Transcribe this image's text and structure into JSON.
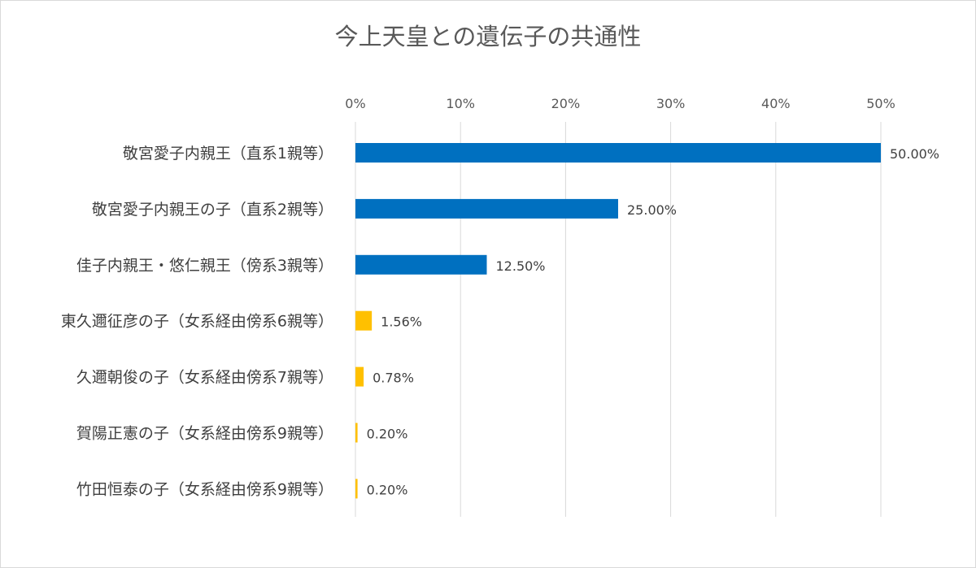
{
  "chart_data": {
    "type": "bar",
    "orientation": "horizontal",
    "title": "今上天皇との遺伝子の共通性",
    "xlabel": "",
    "ylabel": "",
    "xlim": [
      0,
      50
    ],
    "x_ticks": [
      "0%",
      "10%",
      "20%",
      "30%",
      "40%",
      "50%"
    ],
    "grid": true,
    "categories": [
      "敬宮愛子内親王（直系1親等）",
      "敬宮愛子内親王の子（直系2親等）",
      "佳子内親王・悠仁親王（傍系3親等）",
      "東久邇征彦の子（女系経由傍系6親等）",
      "久邇朝俊の子（女系経由傍系7親等）",
      "賀陽正憲の子（女系経由傍系9親等）",
      "竹田恒泰の子（女系経由傍系9親等）"
    ],
    "values": [
      50.0,
      25.0,
      12.5,
      1.56,
      0.78,
      0.2,
      0.2
    ],
    "data_labels": [
      "50.00%",
      "25.00%",
      "12.50%",
      "1.56%",
      "0.78%",
      "0.20%",
      "0.20%"
    ],
    "colors": [
      "#0070c0",
      "#0070c0",
      "#0070c0",
      "#ffc000",
      "#ffc000",
      "#ffc000",
      "#ffc000"
    ],
    "gridline_color": "#d9d9d9"
  }
}
